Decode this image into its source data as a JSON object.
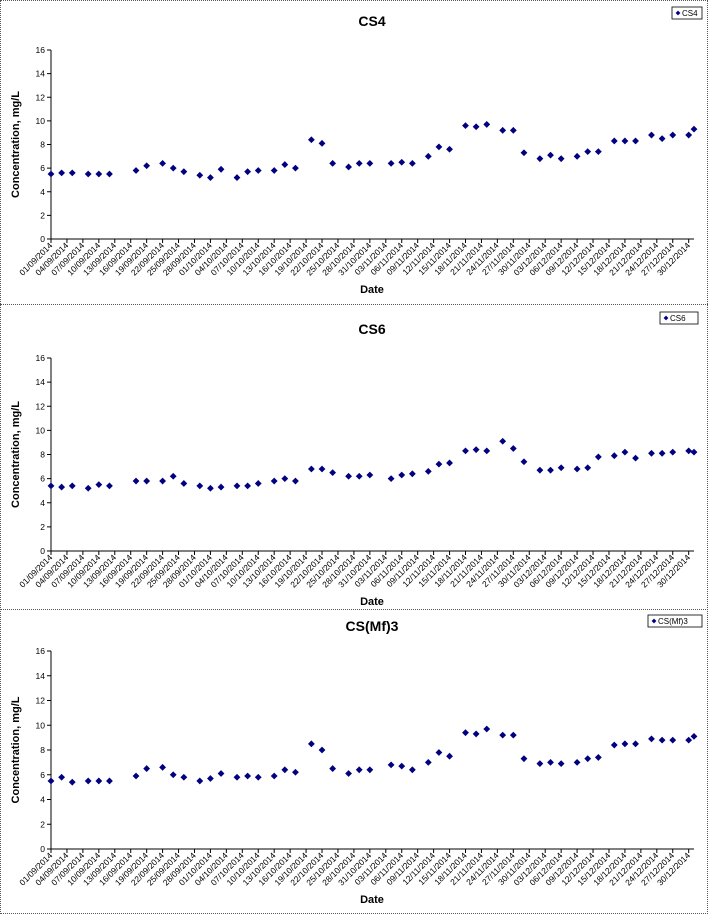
{
  "chart_data": [
    {
      "type": "scatter",
      "title": "CS4",
      "xlabel": "Date",
      "ylabel": "Concentration, mg/L",
      "ylim": [
        0,
        16
      ],
      "yticks": [
        0,
        2,
        4,
        6,
        8,
        10,
        12,
        14,
        16
      ],
      "xlim": [
        "01/09/2014",
        "31/12/2014"
      ],
      "legend": "top-right",
      "grid": false,
      "marker_color": "#000080",
      "x_tick_labels": [
        "01/09/2014",
        "04/09/2014",
        "07/09/2014",
        "10/09/2014",
        "13/09/2014",
        "16/09/2014",
        "19/09/2014",
        "22/09/2014",
        "25/09/2014",
        "28/09/2014",
        "01/10/2014",
        "04/10/2014",
        "07/10/2014",
        "10/10/2014",
        "13/10/2014",
        "16/10/2014",
        "19/10/2014",
        "22/10/2014",
        "25/10/2014",
        "28/10/2014",
        "31/10/2014",
        "03/11/2014",
        "06/11/2014",
        "09/11/2014",
        "12/11/2014",
        "15/11/2014",
        "18/11/2014",
        "21/11/2014",
        "24/11/2014",
        "27/11/2014",
        "30/11/2014",
        "03/12/2014",
        "06/12/2014",
        "09/12/2014",
        "12/12/2014",
        "15/12/2014",
        "18/12/2014",
        "21/12/2014",
        "24/12/2014",
        "27/12/2014",
        "30/12/2014"
      ],
      "series": [
        {
          "name": "CS4",
          "points": [
            [
              "01/09/2014",
              5.5
            ],
            [
              "03/09/2014",
              5.6
            ],
            [
              "05/09/2014",
              5.6
            ],
            [
              "08/09/2014",
              5.5
            ],
            [
              "10/09/2014",
              5.5
            ],
            [
              "12/09/2014",
              5.5
            ],
            [
              "17/09/2014",
              5.8
            ],
            [
              "19/09/2014",
              6.2
            ],
            [
              "22/09/2014",
              6.4
            ],
            [
              "24/09/2014",
              6.0
            ],
            [
              "26/09/2014",
              5.7
            ],
            [
              "29/09/2014",
              5.4
            ],
            [
              "01/10/2014",
              5.2
            ],
            [
              "03/10/2014",
              5.9
            ],
            [
              "06/10/2014",
              5.2
            ],
            [
              "08/10/2014",
              5.7
            ],
            [
              "10/10/2014",
              5.8
            ],
            [
              "13/10/2014",
              5.8
            ],
            [
              "15/10/2014",
              6.3
            ],
            [
              "17/10/2014",
              6.0
            ],
            [
              "20/10/2014",
              8.4
            ],
            [
              "22/10/2014",
              8.1
            ],
            [
              "24/10/2014",
              6.4
            ],
            [
              "27/10/2014",
              6.1
            ],
            [
              "29/10/2014",
              6.4
            ],
            [
              "31/10/2014",
              6.4
            ],
            [
              "04/11/2014",
              6.4
            ],
            [
              "06/11/2014",
              6.5
            ],
            [
              "08/11/2014",
              6.4
            ],
            [
              "11/11/2014",
              7.0
            ],
            [
              "13/11/2014",
              7.8
            ],
            [
              "15/11/2014",
              7.6
            ],
            [
              "18/11/2014",
              9.6
            ],
            [
              "20/11/2014",
              9.5
            ],
            [
              "22/11/2014",
              9.7
            ],
            [
              "25/11/2014",
              9.2
            ],
            [
              "27/11/2014",
              9.2
            ],
            [
              "29/11/2014",
              7.3
            ],
            [
              "02/12/2014",
              6.8
            ],
            [
              "04/12/2014",
              7.1
            ],
            [
              "06/12/2014",
              6.8
            ],
            [
              "09/12/2014",
              7.0
            ],
            [
              "11/12/2014",
              7.4
            ],
            [
              "13/12/2014",
              7.4
            ],
            [
              "16/12/2014",
              8.3
            ],
            [
              "18/12/2014",
              8.3
            ],
            [
              "20/12/2014",
              8.3
            ],
            [
              "23/12/2014",
              8.8
            ],
            [
              "25/12/2014",
              8.5
            ],
            [
              "27/12/2014",
              8.8
            ],
            [
              "30/12/2014",
              8.8
            ],
            [
              "31/12/2014",
              9.3
            ]
          ]
        }
      ]
    },
    {
      "type": "scatter",
      "title": "CS6",
      "xlabel": "Date",
      "ylabel": "Concentration, mg/L",
      "ylim": [
        0,
        16
      ],
      "yticks": [
        0,
        2,
        4,
        6,
        8,
        10,
        12,
        14,
        16
      ],
      "xlim": [
        "01/09/2014",
        "31/12/2014"
      ],
      "legend": "top-right",
      "grid": false,
      "marker_color": "#000080",
      "x_tick_labels": [
        "01/09/2014",
        "04/09/2014",
        "07/09/2014",
        "10/09/2014",
        "13/09/2014",
        "16/09/2014",
        "19/09/2014",
        "22/09/2014",
        "25/09/2014",
        "28/09/2014",
        "01/10/2014",
        "04/10/2014",
        "07/10/2014",
        "10/10/2014",
        "13/10/2014",
        "16/10/2014",
        "19/10/2014",
        "22/10/2014",
        "25/10/2014",
        "28/10/2014",
        "31/10/2014",
        "03/11/2014",
        "06/11/2014",
        "09/11/2014",
        "12/11/2014",
        "15/11/2014",
        "18/11/2014",
        "21/11/2014",
        "24/11/2014",
        "27/11/2014",
        "30/11/2014",
        "03/12/2014",
        "06/12/2014",
        "09/12/2014",
        "12/12/2014",
        "15/12/2014",
        "18/12/2014",
        "21/12/2014",
        "24/12/2014",
        "27/12/2014",
        "30/12/2014"
      ],
      "series": [
        {
          "name": "CS6",
          "points": [
            [
              "01/09/2014",
              5.4
            ],
            [
              "03/09/2014",
              5.3
            ],
            [
              "05/09/2014",
              5.4
            ],
            [
              "08/09/2014",
              5.2
            ],
            [
              "10/09/2014",
              5.5
            ],
            [
              "12/09/2014",
              5.4
            ],
            [
              "17/09/2014",
              5.8
            ],
            [
              "19/09/2014",
              5.8
            ],
            [
              "22/09/2014",
              5.8
            ],
            [
              "24/09/2014",
              6.2
            ],
            [
              "26/09/2014",
              5.6
            ],
            [
              "29/09/2014",
              5.4
            ],
            [
              "01/10/2014",
              5.2
            ],
            [
              "03/10/2014",
              5.3
            ],
            [
              "06/10/2014",
              5.4
            ],
            [
              "08/10/2014",
              5.4
            ],
            [
              "10/10/2014",
              5.6
            ],
            [
              "13/10/2014",
              5.8
            ],
            [
              "15/10/2014",
              6.0
            ],
            [
              "17/10/2014",
              5.8
            ],
            [
              "20/10/2014",
              6.8
            ],
            [
              "22/10/2014",
              6.8
            ],
            [
              "24/10/2014",
              6.5
            ],
            [
              "27/10/2014",
              6.2
            ],
            [
              "29/10/2014",
              6.2
            ],
            [
              "31/10/2014",
              6.3
            ],
            [
              "04/11/2014",
              6.0
            ],
            [
              "06/11/2014",
              6.3
            ],
            [
              "08/11/2014",
              6.4
            ],
            [
              "11/11/2014",
              6.6
            ],
            [
              "13/11/2014",
              7.2
            ],
            [
              "15/11/2014",
              7.3
            ],
            [
              "18/11/2014",
              8.3
            ],
            [
              "20/11/2014",
              8.4
            ],
            [
              "22/11/2014",
              8.3
            ],
            [
              "25/11/2014",
              9.1
            ],
            [
              "27/11/2014",
              8.5
            ],
            [
              "29/11/2014",
              7.4
            ],
            [
              "02/12/2014",
              6.7
            ],
            [
              "04/12/2014",
              6.7
            ],
            [
              "06/12/2014",
              6.9
            ],
            [
              "09/12/2014",
              6.8
            ],
            [
              "11/12/2014",
              6.9
            ],
            [
              "13/12/2014",
              7.8
            ],
            [
              "16/12/2014",
              7.9
            ],
            [
              "18/12/2014",
              8.2
            ],
            [
              "20/12/2014",
              7.7
            ],
            [
              "23/12/2014",
              8.1
            ],
            [
              "25/12/2014",
              8.1
            ],
            [
              "27/12/2014",
              8.2
            ],
            [
              "30/12/2014",
              8.3
            ],
            [
              "31/12/2014",
              8.2
            ]
          ]
        }
      ]
    },
    {
      "type": "scatter",
      "title": "CS(Mf)3",
      "xlabel": "Date",
      "ylabel": "Concentration, mg/L",
      "ylim": [
        0,
        16
      ],
      "yticks": [
        0,
        2,
        4,
        6,
        8,
        10,
        12,
        14,
        16
      ],
      "xlim": [
        "01/09/2014",
        "31/12/2014"
      ],
      "legend": "top-right",
      "grid": false,
      "marker_color": "#000080",
      "x_tick_labels": [
        "01/09/2014",
        "04/09/2014",
        "07/09/2014",
        "10/09/2014",
        "13/09/2014",
        "16/09/2014",
        "19/09/2014",
        "22/09/2014",
        "25/09/2014",
        "28/09/2014",
        "01/10/2014",
        "04/10/2014",
        "07/10/2014",
        "10/10/2014",
        "13/10/2014",
        "16/10/2014",
        "19/10/2014",
        "22/10/2014",
        "25/10/2014",
        "28/10/2014",
        "31/10/2014",
        "03/11/2014",
        "06/11/2014",
        "09/11/2014",
        "12/11/2014",
        "15/11/2014",
        "18/11/2014",
        "21/11/2014",
        "24/11/2014",
        "27/11/2014",
        "30/11/2014",
        "03/12/2014",
        "06/12/2014",
        "09/12/2014",
        "12/12/2014",
        "15/12/2014",
        "18/12/2014",
        "21/12/2014",
        "24/12/2014",
        "27/12/2014",
        "30/12/2014"
      ],
      "series": [
        {
          "name": "CS(Mf)3",
          "points": [
            [
              "01/09/2014",
              5.5
            ],
            [
              "03/09/2014",
              5.8
            ],
            [
              "05/09/2014",
              5.4
            ],
            [
              "08/09/2014",
              5.5
            ],
            [
              "10/09/2014",
              5.5
            ],
            [
              "12/09/2014",
              5.5
            ],
            [
              "17/09/2014",
              5.9
            ],
            [
              "19/09/2014",
              6.5
            ],
            [
              "22/09/2014",
              6.6
            ],
            [
              "24/09/2014",
              6.0
            ],
            [
              "26/09/2014",
              5.8
            ],
            [
              "29/09/2014",
              5.5
            ],
            [
              "01/10/2014",
              5.7
            ],
            [
              "03/10/2014",
              6.1
            ],
            [
              "06/10/2014",
              5.8
            ],
            [
              "08/10/2014",
              5.9
            ],
            [
              "10/10/2014",
              5.8
            ],
            [
              "13/10/2014",
              5.9
            ],
            [
              "15/10/2014",
              6.4
            ],
            [
              "17/10/2014",
              6.2
            ],
            [
              "20/10/2014",
              8.5
            ],
            [
              "22/10/2014",
              8.0
            ],
            [
              "24/10/2014",
              6.5
            ],
            [
              "27/10/2014",
              6.1
            ],
            [
              "29/10/2014",
              6.4
            ],
            [
              "31/10/2014",
              6.4
            ],
            [
              "04/11/2014",
              6.8
            ],
            [
              "06/11/2014",
              6.7
            ],
            [
              "08/11/2014",
              6.4
            ],
            [
              "11/11/2014",
              7.0
            ],
            [
              "13/11/2014",
              7.8
            ],
            [
              "15/11/2014",
              7.5
            ],
            [
              "18/11/2014",
              9.4
            ],
            [
              "20/11/2014",
              9.3
            ],
            [
              "22/11/2014",
              9.7
            ],
            [
              "25/11/2014",
              9.2
            ],
            [
              "27/11/2014",
              9.2
            ],
            [
              "29/11/2014",
              7.3
            ],
            [
              "02/12/2014",
              6.9
            ],
            [
              "04/12/2014",
              7.0
            ],
            [
              "06/12/2014",
              6.9
            ],
            [
              "09/12/2014",
              7.0
            ],
            [
              "11/12/2014",
              7.3
            ],
            [
              "13/12/2014",
              7.4
            ],
            [
              "16/12/2014",
              8.4
            ],
            [
              "18/12/2014",
              8.5
            ],
            [
              "20/12/2014",
              8.5
            ],
            [
              "23/12/2014",
              8.9
            ],
            [
              "25/12/2014",
              8.8
            ],
            [
              "27/12/2014",
              8.8
            ],
            [
              "30/12/2014",
              8.8
            ],
            [
              "31/12/2014",
              9.1
            ]
          ]
        }
      ]
    }
  ]
}
